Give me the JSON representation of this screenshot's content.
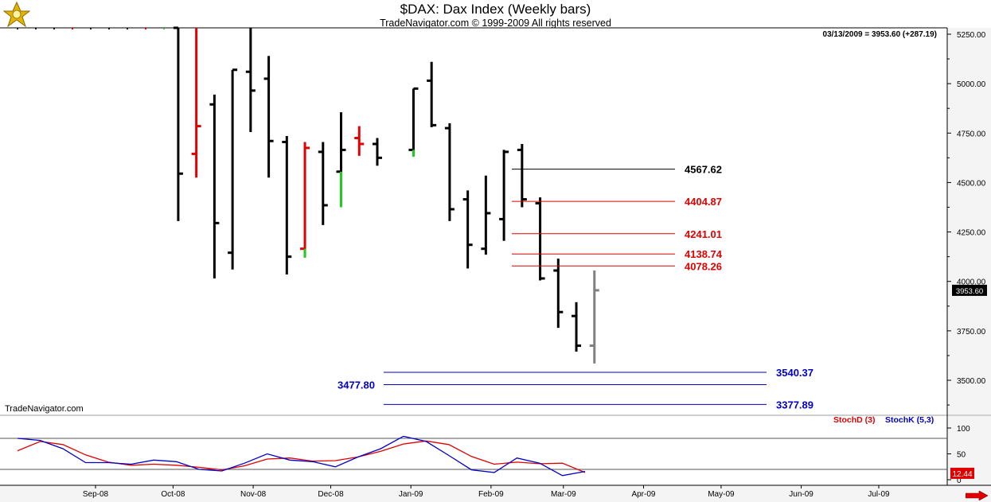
{
  "chart_data": [
    {
      "type": "ohlc",
      "title": "$DAX:  Dax Index  (Weekly bars)",
      "subtitle": "TradeNavigator.com © 1999-2009 All rights reserved",
      "readout": "03/13/2009 = 3953.60 (+287.19)",
      "current_price_label": "3953.60",
      "watermark": "TradeNavigator.com",
      "ylim": [
        3300,
        5290
      ],
      "y_ticks": [
        "5250.00",
        "5000.00",
        "4750.00",
        "4500.00",
        "4250.00",
        "4000.00",
        "3750.00",
        "3500.00"
      ],
      "x_ticks": [
        "Sep-08",
        "Oct-08",
        "Nov-08",
        "Dec-08",
        "Jan-09",
        "Feb-09",
        "Mar-09",
        "Apr-09",
        "May-09",
        "Jun-09",
        "Jul-09"
      ],
      "bars": [
        {
          "date": "2008-10-03",
          "open": 5290,
          "high": 5290,
          "low": 4305,
          "close": 4545,
          "color": "black"
        },
        {
          "date": "2008-10-10",
          "open": 4645,
          "high": 5290,
          "low": 4525,
          "close": 4785,
          "color": "red"
        },
        {
          "date": "2008-10-17",
          "open": 4895,
          "high": 4945,
          "low": 4015,
          "close": 4295,
          "color": "black"
        },
        {
          "date": "2008-10-24",
          "open": 4145,
          "high": 5070,
          "low": 4060,
          "close": 5070,
          "color": "black"
        },
        {
          "date": "2008-10-31",
          "open": 5060,
          "high": 5290,
          "low": 4755,
          "close": 4965,
          "color": "black"
        },
        {
          "date": "2008-11-07",
          "open": 5025,
          "high": 5140,
          "low": 4525,
          "close": 4710,
          "color": "black"
        },
        {
          "date": "2008-11-14",
          "open": 4705,
          "high": 4735,
          "low": 4035,
          "close": 4125,
          "color": "black"
        },
        {
          "date": "2008-11-21",
          "open": 4165,
          "high": 4705,
          "low": 4125,
          "close": 4675,
          "color": "red"
        },
        {
          "date": "2008-11-28",
          "open": 4655,
          "high": 4705,
          "low": 4285,
          "close": 4385,
          "color": "black"
        },
        {
          "date": "2008-12-05",
          "open": 4555,
          "high": 4855,
          "low": 4385,
          "close": 4665,
          "color": "black"
        },
        {
          "date": "2008-12-12",
          "open": 4725,
          "high": 4785,
          "low": 4635,
          "close": 4695,
          "color": "red"
        },
        {
          "date": "2008-12-19",
          "open": 4695,
          "high": 4725,
          "low": 4585,
          "close": 4625,
          "color": "black"
        },
        {
          "date": "2009-01-02",
          "open": 4665,
          "high": 4975,
          "low": 4635,
          "close": 4975,
          "color": "black"
        },
        {
          "date": "2009-01-09",
          "open": 5015,
          "high": 5110,
          "low": 4780,
          "close": 4790,
          "color": "black"
        },
        {
          "date": "2009-01-16",
          "open": 4775,
          "high": 4800,
          "low": 4305,
          "close": 4365,
          "color": "black"
        },
        {
          "date": "2009-01-23",
          "open": 4415,
          "high": 4460,
          "low": 4065,
          "close": 4185,
          "color": "black"
        },
        {
          "date": "2009-01-30",
          "open": 4165,
          "high": 4535,
          "low": 4135,
          "close": 4345,
          "color": "black"
        },
        {
          "date": "2009-02-06",
          "open": 4315,
          "high": 4665,
          "low": 4205,
          "close": 4655,
          "color": "black"
        },
        {
          "date": "2009-02-13",
          "open": 4665,
          "high": 4695,
          "low": 4375,
          "close": 4415,
          "color": "black"
        },
        {
          "date": "2009-02-20",
          "open": 4395,
          "high": 4425,
          "low": 4005,
          "close": 4015,
          "color": "black"
        },
        {
          "date": "2009-02-27",
          "open": 4055,
          "high": 4115,
          "low": 3765,
          "close": 3845,
          "color": "black"
        },
        {
          "date": "2009-03-06",
          "open": 3825,
          "high": 3895,
          "low": 3645,
          "close": 3675,
          "color": "black"
        },
        {
          "date": "2009-03-13",
          "open": 3675,
          "high": 4055,
          "low": 3585,
          "close": 3955,
          "color": "gray"
        }
      ],
      "levels": [
        {
          "value": "4567.62",
          "color": "#000000"
        },
        {
          "value": "4404.87",
          "color": "#e00000"
        },
        {
          "value": "4241.01",
          "color": "#e00000"
        },
        {
          "value": "4138.74",
          "color": "#e00000"
        },
        {
          "value": "4078.26",
          "color": "#e00000"
        },
        {
          "value": "3540.37",
          "color": "#0000c8"
        },
        {
          "value": "3477.80",
          "color": "#0000c8"
        },
        {
          "value": "3377.89",
          "color": "#0000c8"
        }
      ]
    },
    {
      "type": "line",
      "title": "",
      "series": [
        {
          "name": "StochD (3)",
          "color": "#e00000",
          "values": [
            56,
            74,
            68,
            48,
            34,
            28,
            30,
            28,
            24,
            19,
            27,
            40,
            42,
            36,
            37,
            44,
            55,
            69,
            75,
            68,
            45,
            30,
            34,
            31,
            32,
            14
          ]
        },
        {
          "name": "StochK (5,3)",
          "color": "#0000c8",
          "values": [
            80,
            76,
            60,
            33,
            33,
            30,
            38,
            35,
            20,
            17,
            32,
            50,
            38,
            35,
            25,
            44,
            60,
            84,
            74,
            47,
            19,
            14,
            42,
            32,
            8,
            16
          ]
        }
      ],
      "ylim": [
        -5,
        115
      ],
      "y_ticks": [
        "100",
        "50",
        "0"
      ],
      "reference_lines": [
        80,
        20
      ],
      "last_value": "12.44"
    }
  ],
  "colors": {
    "up": "#000000",
    "red_bar": "#e00000",
    "green_tick": "#22cc22",
    "gray_bar": "#808080",
    "price_box": "#000000",
    "stoch_box": "#e00000"
  },
  "nav_arrow_icon": "right-arrow-icon"
}
